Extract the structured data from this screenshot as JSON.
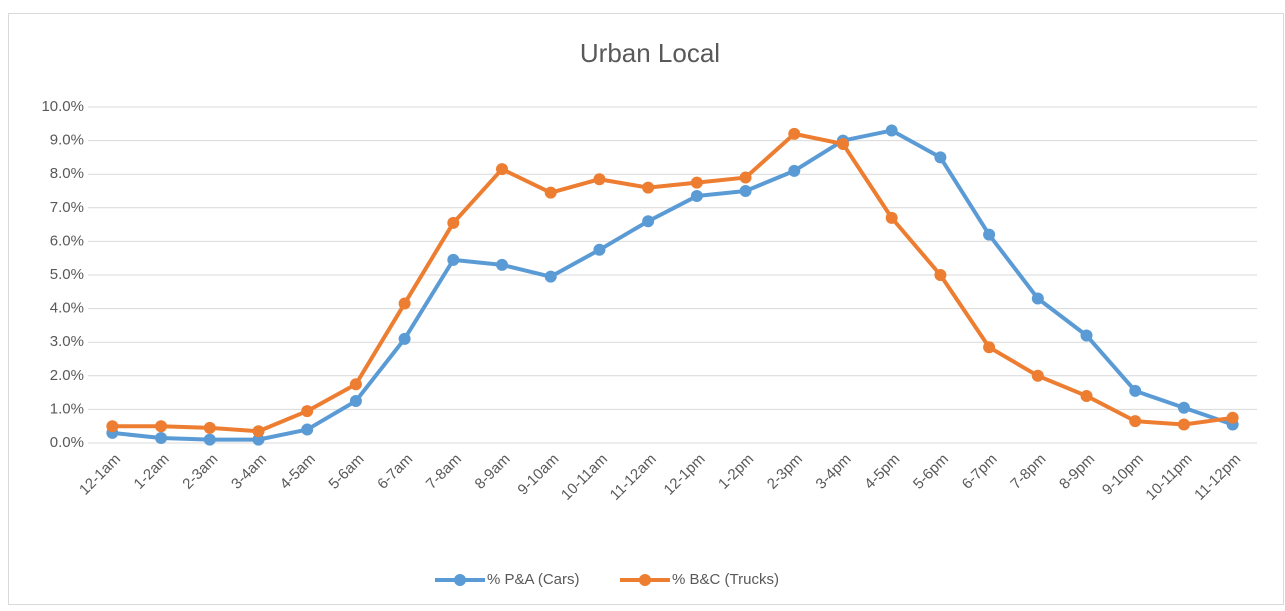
{
  "chart_data": {
    "type": "line",
    "title": "Urban Local",
    "categories": [
      "12-1am",
      "1-2am",
      "2-3am",
      "3-4am",
      "4-5am",
      "5-6am",
      "6-7am",
      "7-8am",
      "8-9am",
      "9-10am",
      "10-11am",
      "11-12am",
      "12-1pm",
      "1-2pm",
      "2-3pm",
      "3-4pm",
      "4-5pm",
      "5-6pm",
      "6-7pm",
      "7-8pm",
      "8-9pm",
      "9-10pm",
      "10-11pm",
      "11-12pm"
    ],
    "series": [
      {
        "name": "% P&A (Cars)",
        "color": "#5b9bd5",
        "values": [
          0.3,
          0.15,
          0.1,
          0.1,
          0.4,
          1.25,
          3.1,
          5.45,
          5.3,
          4.95,
          5.75,
          6.6,
          7.35,
          7.5,
          8.1,
          9.0,
          9.3,
          8.5,
          6.2,
          4.3,
          3.2,
          1.55,
          1.05,
          0.55
        ]
      },
      {
        "name": "% B&C (Trucks)",
        "color": "#ed7d31",
        "values": [
          0.5,
          0.5,
          0.45,
          0.35,
          0.95,
          1.75,
          4.15,
          6.55,
          8.15,
          7.45,
          7.85,
          7.6,
          7.75,
          7.9,
          9.2,
          8.9,
          6.7,
          5.0,
          2.85,
          2.0,
          1.4,
          0.65,
          0.55,
          0.75
        ]
      }
    ],
    "ylim": [
      0,
      10
    ],
    "yticks": [
      {
        "value": 0,
        "label": "0.0%"
      },
      {
        "value": 1,
        "label": "1.0%"
      },
      {
        "value": 2,
        "label": "2.0%"
      },
      {
        "value": 3,
        "label": "3.0%"
      },
      {
        "value": 4,
        "label": "4.0%"
      },
      {
        "value": 5,
        "label": "5.0%"
      },
      {
        "value": 6,
        "label": "6.0%"
      },
      {
        "value": 7,
        "label": "7.0%"
      },
      {
        "value": 8,
        "label": "8.0%"
      },
      {
        "value": 9,
        "label": "9.0%"
      },
      {
        "value": 10,
        "label": "10.0%"
      }
    ],
    "grid": true,
    "legend": "bottom"
  }
}
